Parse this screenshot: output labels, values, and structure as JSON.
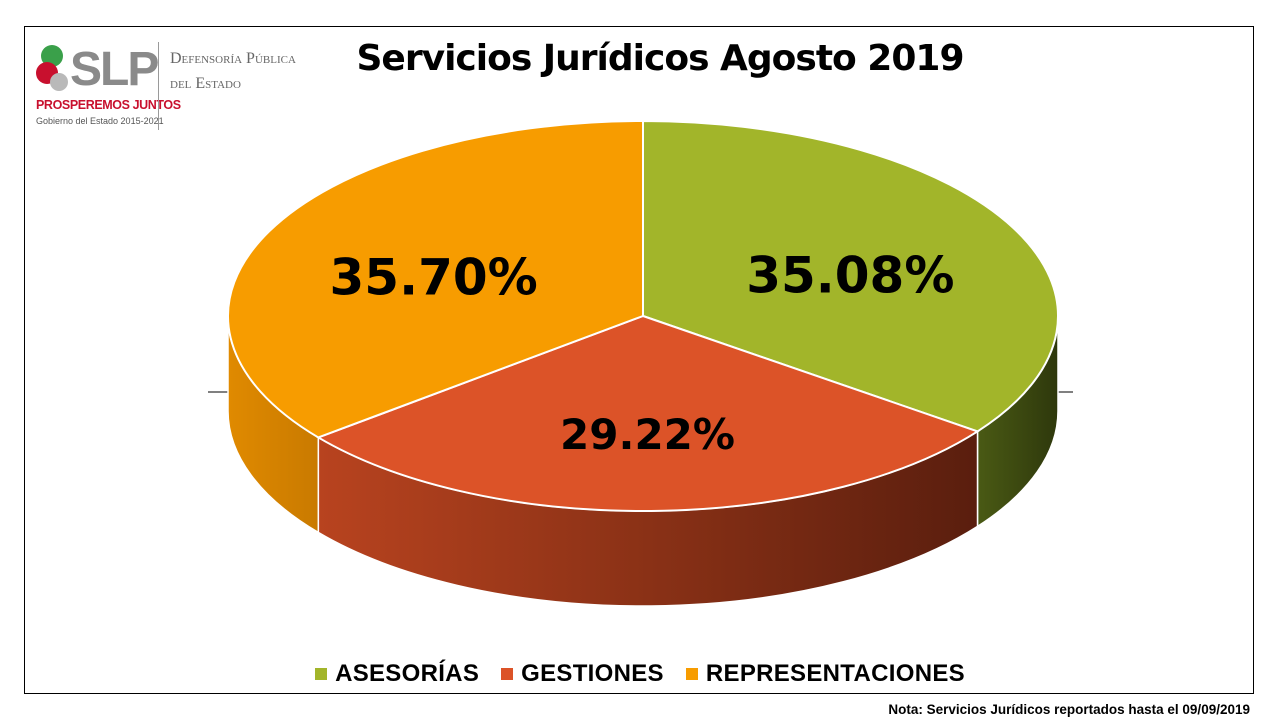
{
  "logo": {
    "abbr": "SLP",
    "slogan": "PROSPEREMOS JUNTOS",
    "gobierno": "Gobierno del Estado 2015-2021",
    "org_line1": "Defensoría Pública",
    "org_line2": "del Estado"
  },
  "note": "Nota: Servicios Jurídicos reportados hasta el 09/09/2019",
  "chart_data": {
    "type": "pie",
    "title": "Servicios Jurídicos Agosto 2019",
    "style": "3d",
    "legend_position": "bottom",
    "slices": [
      {
        "label": "ASESORÍAS",
        "value": 35.08,
        "display": "35.08%",
        "color": "#a2b52a",
        "side_color": "#3b4710"
      },
      {
        "label": "GESTIONES",
        "value": 29.22,
        "display": "29.22%",
        "color": "#dc5328",
        "side_color": "#7a2a12"
      },
      {
        "label": "REPRESENTACIONES",
        "value": 35.7,
        "display": "35.70%",
        "color": "#f79c00",
        "side_color": "#c97a00"
      }
    ]
  }
}
